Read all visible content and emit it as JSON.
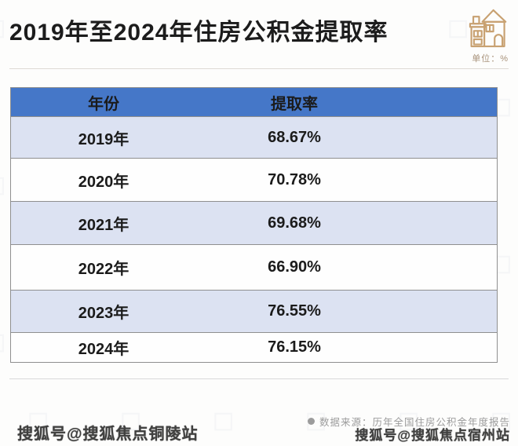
{
  "title": "2019年至2024年住房公积金提取率",
  "unit_label": "单位：%",
  "table": {
    "columns": {
      "year": "年份",
      "rate": "提取率"
    },
    "rows": [
      {
        "year": "2019年",
        "rate": "68.67%"
      },
      {
        "year": "2020年",
        "rate": "70.78%"
      },
      {
        "year": "2021年",
        "rate": "69.68%"
      },
      {
        "year": "2022年",
        "rate": "66.90%"
      },
      {
        "year": "2023年",
        "rate": "76.55%"
      },
      {
        "year": "2024年",
        "rate": "76.15%"
      }
    ]
  },
  "source_note": "数据来源：历年全国住房公积金年度报告",
  "watermark_left": "搜狐号@搜狐焦点铜陵站",
  "watermark_right": "搜狐号@搜狐焦点宿州站",
  "icons": {
    "house_icon": "house-line-art",
    "watermark_glyph": "◇"
  },
  "colors": {
    "header_bg": "#4577c8",
    "header_text": "#ffffff",
    "row_alt_bg": "#dce2f2",
    "row_bg": "#fefefe",
    "table_border": "#8f8f8f",
    "title_text": "#1c1c1c",
    "icon_tan": "#c8a171",
    "source_text": "#9c9c9c",
    "watermark_text": "#262626"
  },
  "chart_data": {
    "type": "table",
    "title": "2019年至2024年住房公积金提取率",
    "unit": "%",
    "columns": [
      "年份",
      "提取率"
    ],
    "categories": [
      "2019年",
      "2020年",
      "2021年",
      "2022年",
      "2023年",
      "2024年"
    ],
    "values": [
      68.67,
      70.78,
      69.68,
      66.9,
      76.55,
      76.15
    ],
    "source": "数据来源：历年全国住房公积金年度报告"
  }
}
